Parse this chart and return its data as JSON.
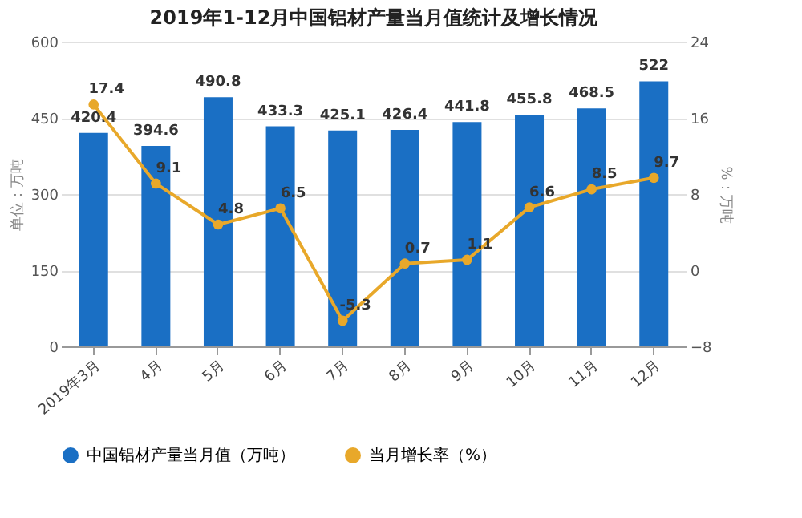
{
  "chart_data": {
    "type": "bar",
    "title": "2019年1-12月中国铝材产量当月值统计及增长情况",
    "categories": [
      "2019年3月",
      "4月",
      "5月",
      "6月",
      "7月",
      "8月",
      "9月",
      "10月",
      "11月",
      "12月"
    ],
    "series": [
      {
        "name": "中国铝材产量当月值（万吨）",
        "color": "#1a6fc4",
        "values": [
          420.4,
          394.6,
          490.8,
          433.3,
          425.1,
          426.4,
          441.8,
          455.8,
          468.5,
          522
        ]
      },
      {
        "name": "当月增长率（%）",
        "type": "line",
        "axis": "y2",
        "color": "#e8a82a",
        "values": [
          17.4,
          9.1,
          4.8,
          6.5,
          -5.3,
          0.7,
          1.1,
          6.6,
          8.5,
          9.7
        ]
      }
    ],
    "ylabel": "单位：万吨",
    "y2label": "%：万吨",
    "ylim": [
      0,
      600
    ],
    "yticks": [
      0,
      150,
      300,
      450,
      600
    ],
    "y2lim": [
      -8,
      24
    ],
    "y2ticks": [
      -8,
      0,
      8,
      16,
      24
    ],
    "data_labels": true,
    "legend": "bottom",
    "grid": "y",
    "marker": "circle"
  }
}
